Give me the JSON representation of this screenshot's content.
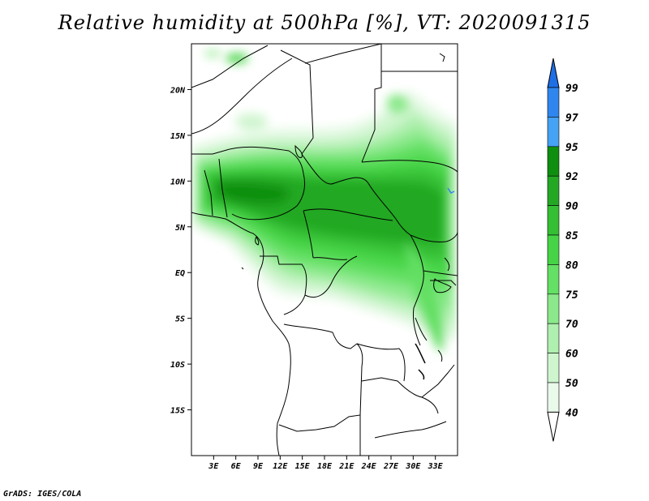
{
  "title": "Relative humidity at 500hPa [%], VT: 2020091315",
  "credit": "GrADS: IGES/COLA",
  "map": {
    "lon_range": [
      0,
      36
    ],
    "lat_range": [
      -20,
      25
    ],
    "lon_ticks": [
      "3E",
      "6E",
      "9E",
      "12E",
      "15E",
      "18E",
      "21E",
      "24E",
      "27E",
      "30E",
      "33E"
    ],
    "lat_ticks": [
      "20N",
      "15N",
      "10N",
      "5N",
      "EQ",
      "5S",
      "10S",
      "15S"
    ],
    "land_color": "#ffffff",
    "boundary_color": "#000000"
  },
  "colorbar": {
    "labels": [
      "99",
      "97",
      "95",
      "92",
      "90",
      "85",
      "80",
      "75",
      "70",
      "60",
      "50",
      "40"
    ],
    "colors": [
      "#1e6fe6",
      "#2f86ee",
      "#45a2f4",
      "#0f8f0f",
      "#24a824",
      "#34bf34",
      "#46d446",
      "#64e064",
      "#8be98b",
      "#afefaf",
      "#cff5cf",
      "#eafaea"
    ]
  }
}
